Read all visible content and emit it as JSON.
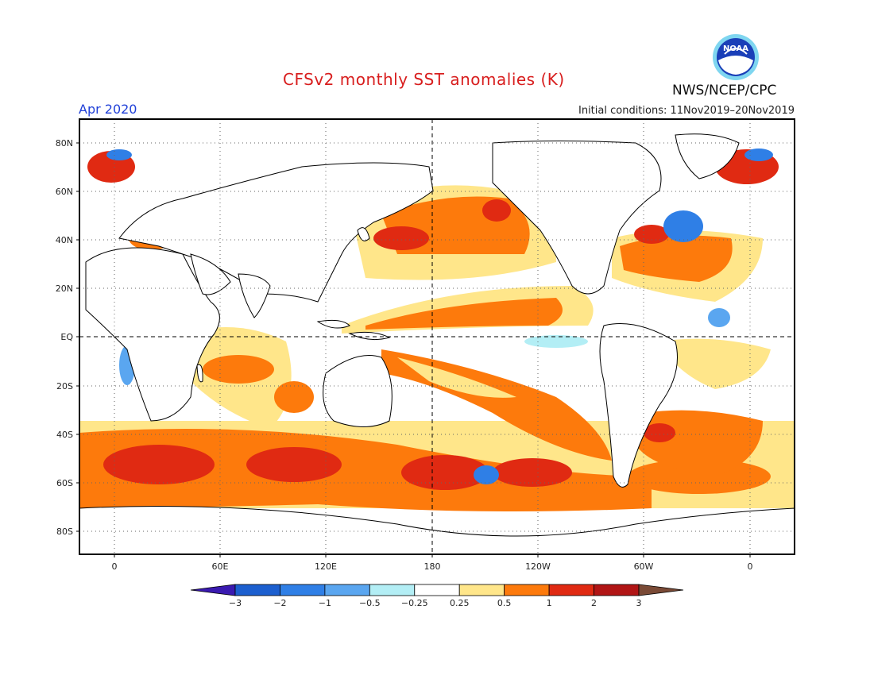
{
  "header": {
    "title": "CFSv2 monthly SST anomalies (K)",
    "agency": "NWS/NCEP/CPC",
    "month": "Apr 2020",
    "initial_conditions": "Initial conditions: 11Nov2019–20Nov2019",
    "logo_text": "NOAA"
  },
  "axes": {
    "lat_labels": [
      "80N",
      "60N",
      "40N",
      "20N",
      "EQ",
      "20S",
      "40S",
      "60S",
      "80S"
    ],
    "lon_labels": [
      "0",
      "60E",
      "120E",
      "180",
      "120W",
      "60W",
      "0"
    ]
  },
  "colorbar": {
    "labels": [
      "−3",
      "−2",
      "−1",
      "−0.5",
      "−0.25",
      "0.25",
      "0.5",
      "1",
      "2",
      "3"
    ],
    "colors": [
      "#3a1ab0",
      "#1c5fcf",
      "#2f7fe6",
      "#5aa6f0",
      "#b3eef5",
      "#ffffff",
      "#ffe68a",
      "#fd7a0c",
      "#e02a12",
      "#b11515",
      "#7a4a36"
    ]
  },
  "colors": {
    "title": "#d81e1e",
    "month": "#2040d8",
    "land": "#ffffff",
    "coast": "#000000"
  }
}
